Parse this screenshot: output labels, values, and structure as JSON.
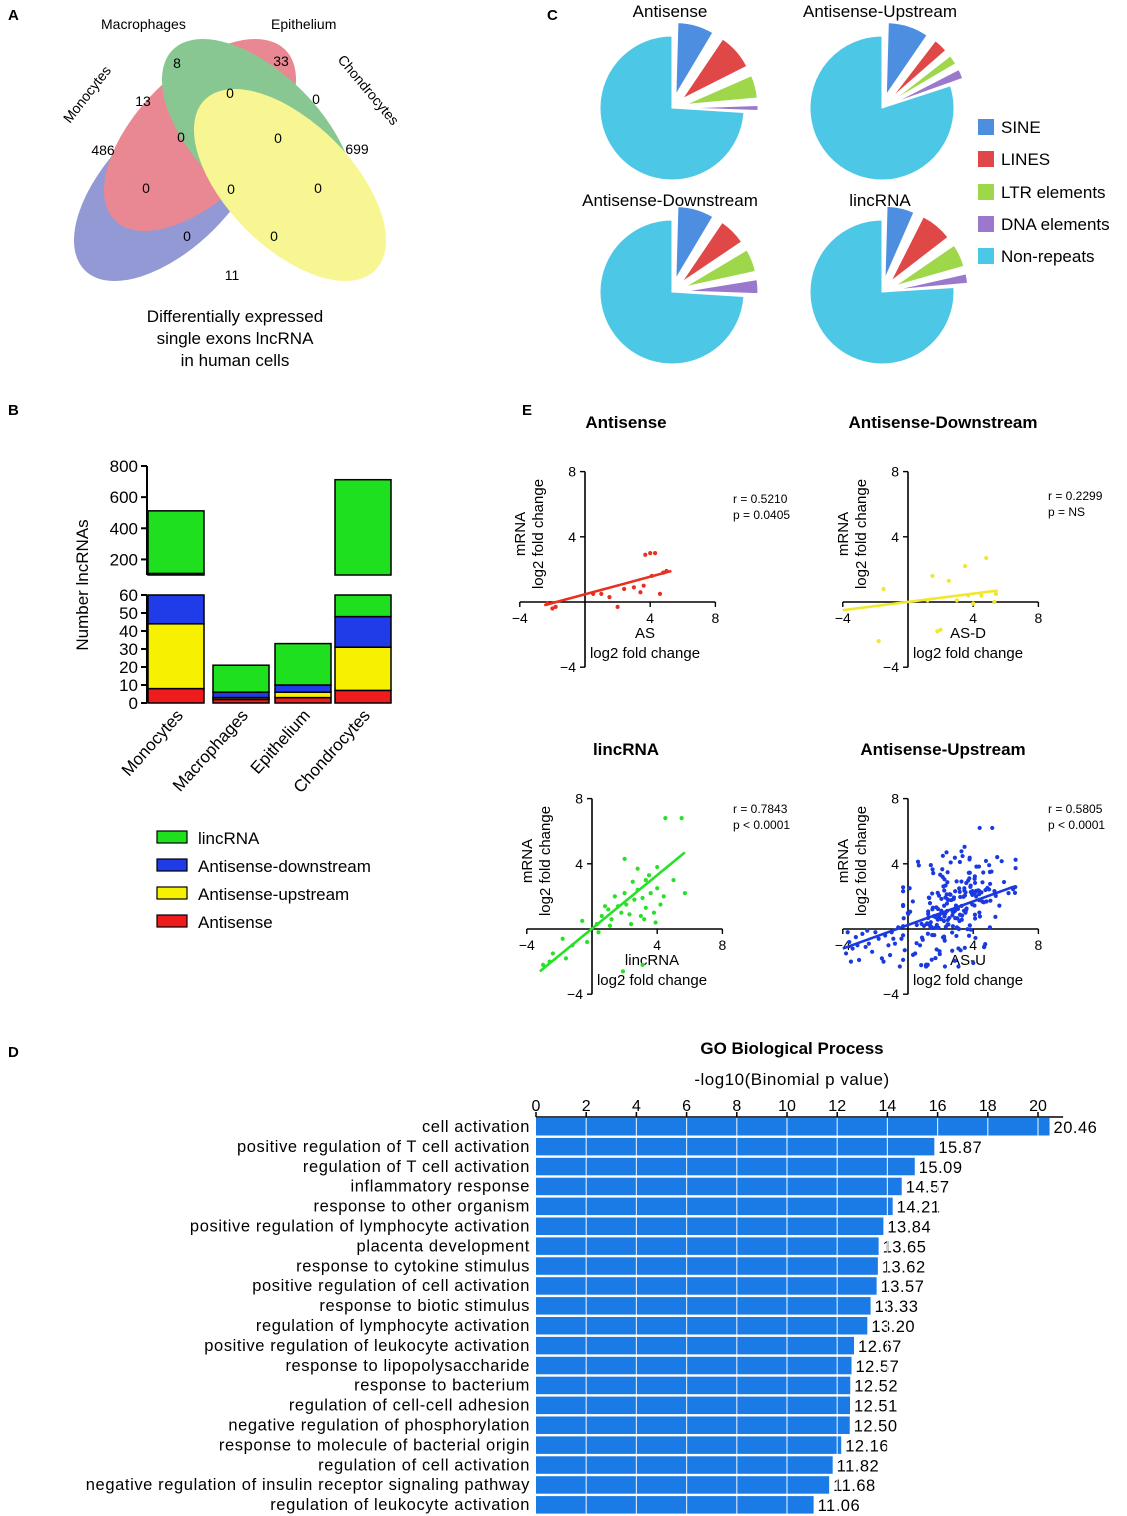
{
  "panels": {
    "A": "A",
    "B": "B",
    "C": "C",
    "D": "D",
    "E": "E"
  },
  "venn": {
    "sets": [
      "Monocytes",
      "Macrophages",
      "Epithelium",
      "Chondrocytes"
    ],
    "set_colors": [
      "#3a46b4",
      "#d8283a",
      "#2a9a3a",
      "#f2f03c"
    ],
    "regions": {
      "mono_only": "486",
      "macro_only": "8",
      "epi_only": "33",
      "chondro_only": "699",
      "mono_macro": "13",
      "macro_epi": "0",
      "epi_chondro": "0",
      "mono_epi": "0",
      "macro_chondro": "0",
      "mono_chondro": "11",
      "mono_macro_epi": "0",
      "macro_epi_chondro": "0",
      "all_four": "0",
      "mono_epi_chondro": "0",
      "mono_macro_chondro": "0"
    },
    "caption": [
      "Differentially expressed",
      "single exons lncRNA",
      "in human cells"
    ]
  },
  "chart_data": [
    {
      "id": "B",
      "type": "bar",
      "stacked": true,
      "ylabel": "Number lncRNAs",
      "categories": [
        "Monocytes",
        "Macrophages",
        "Epithelium",
        "Chondrocytes"
      ],
      "series": [
        {
          "name": "Antisense",
          "color": "#ee1c1c",
          "values": [
            8,
            2,
            3,
            7
          ]
        },
        {
          "name": "Antisense-upstream",
          "color": "#f7f000",
          "values": [
            36,
            1,
            3,
            24
          ]
        },
        {
          "name": "Antisense-downstream",
          "color": "#1f3ce8",
          "values": [
            66,
            3,
            4,
            17
          ]
        },
        {
          "name": "lincRNA",
          "color": "#1ee01e",
          "values": [
            402,
            15,
            23,
            664
          ]
        }
      ],
      "totals": [
        512,
        21,
        33,
        712
      ],
      "ylim_lower": [
        0,
        60
      ],
      "ylim_upper": [
        100,
        800
      ],
      "yticks_lower": [
        "0",
        "10",
        "20",
        "30",
        "40",
        "50",
        "60"
      ],
      "yticks_upper": [
        "200",
        "400",
        "600",
        "800"
      ],
      "legend": [
        "lincRNA",
        "Antisense-downstream",
        "Antisense-upstream",
        "Antisense"
      ]
    },
    {
      "id": "C",
      "type": "pie",
      "labels": [
        "SINE",
        "LINES",
        "LTR elements",
        "DNA elements",
        "Non-repeats"
      ],
      "colors": [
        "#4d8ee0",
        "#e04848",
        "#9ed84a",
        "#9a78cc",
        "#4cc8e6"
      ],
      "pies": [
        {
          "title": "Antisense",
          "values": [
            9,
            9,
            6,
            2,
            74
          ]
        },
        {
          "title": "Antisense-Upstream",
          "values": [
            10,
            4,
            3,
            3,
            80
          ]
        },
        {
          "title": "Antisense-Downstream",
          "values": [
            9,
            7,
            6,
            4,
            74
          ]
        },
        {
          "title": "lincRNA",
          "values": [
            7,
            8,
            6,
            3,
            76
          ]
        }
      ]
    },
    {
      "id": "E",
      "type": "scatter",
      "ylabel": [
        "mRNA",
        "log2 fold change"
      ],
      "xlim": [
        -4,
        8
      ],
      "ylim": [
        -4,
        8
      ],
      "ticks": [
        "-4",
        "4",
        "8"
      ],
      "plots": [
        {
          "title": "Antisense",
          "xlabel": "AS",
          "xlabel2": "log2 fold change",
          "color": "#e83020",
          "r": "r = 0.5210",
          "p": "p = 0.0405",
          "fit": [
            [
              -2.5,
              -0.2
            ],
            [
              5.3,
              1.9
            ]
          ],
          "points": [
            [
              -2.3,
              -0.1
            ],
            [
              -2.0,
              -0.4
            ],
            [
              -1.8,
              -0.3
            ],
            [
              0.5,
              0.5
            ],
            [
              1.0,
              0.5
            ],
            [
              1.5,
              0.3
            ],
            [
              2.0,
              -0.3
            ],
            [
              2.4,
              0.8
            ],
            [
              3.0,
              0.9
            ],
            [
              3.4,
              0.6
            ],
            [
              3.6,
              1.0
            ],
            [
              3.7,
              2.9
            ],
            [
              4.0,
              3.0
            ],
            [
              4.1,
              1.6
            ],
            [
              4.3,
              3.0
            ],
            [
              4.6,
              0.5
            ],
            [
              4.8,
              1.8
            ],
            [
              5.0,
              1.9
            ]
          ]
        },
        {
          "title": "Antisense-Downstream",
          "xlabel": "AS-D",
          "xlabel2": "log2 fold change",
          "color": "#f0e830",
          "r": "r = 0.2299",
          "p": "p = NS",
          "fit": [
            [
              -4.0,
              -0.5
            ],
            [
              5.5,
              0.7
            ]
          ],
          "points": [
            [
              -1.5,
              0.8
            ],
            [
              -1.8,
              -2.4
            ],
            [
              1.2,
              0.1
            ],
            [
              1.5,
              1.6
            ],
            [
              1.8,
              -1.8
            ],
            [
              2.0,
              -1.7
            ],
            [
              2.5,
              1.3
            ],
            [
              3.0,
              0.1
            ],
            [
              3.5,
              2.2
            ],
            [
              3.7,
              0.4
            ],
            [
              4.0,
              -0.1
            ],
            [
              4.5,
              0.4
            ],
            [
              4.8,
              2.7
            ],
            [
              5.4,
              0.5
            ],
            [
              5.3,
              0.0
            ]
          ]
        },
        {
          "title": "lincRNA",
          "xlabel": "lincRNA",
          "xlabel2": "log2 fold change",
          "color": "#28e028",
          "r": "r = 0.7843",
          "p": "p < 0.0001",
          "fit": [
            [
              -3.2,
              -2.6
            ],
            [
              5.7,
              4.7
            ]
          ],
          "points": [
            [
              -3.0,
              -2.2
            ],
            [
              -2.6,
              -2.0
            ],
            [
              -2.4,
              -1.5
            ],
            [
              -1.8,
              -0.6
            ],
            [
              -1.6,
              -1.8
            ],
            [
              -1.2,
              -1.0
            ],
            [
              -0.6,
              0.5
            ],
            [
              -0.3,
              -0.8
            ],
            [
              0.3,
              0.3
            ],
            [
              0.6,
              0.8
            ],
            [
              0.8,
              1.4
            ],
            [
              1.0,
              1.2
            ],
            [
              1.2,
              0.6
            ],
            [
              1.4,
              2.0
            ],
            [
              1.6,
              1.4
            ],
            [
              1.8,
              1.0
            ],
            [
              2.0,
              2.2
            ],
            [
              2.1,
              1.5
            ],
            [
              2.3,
              0.9
            ],
            [
              2.5,
              2.9
            ],
            [
              2.6,
              1.8
            ],
            [
              2.8,
              2.4
            ],
            [
              3.0,
              0.8
            ],
            [
              3.1,
              1.9
            ],
            [
              3.2,
              0.6
            ],
            [
              3.3,
              1.3
            ],
            [
              3.5,
              3.3
            ],
            [
              3.6,
              2.2
            ],
            [
              3.8,
              1.0
            ],
            [
              4.0,
              2.5
            ],
            [
              4.2,
              1.5
            ],
            [
              4.4,
              2.0
            ],
            [
              2.0,
              4.3
            ],
            [
              2.8,
              3.7
            ],
            [
              4.0,
              3.8
            ],
            [
              4.5,
              6.8
            ],
            [
              5.0,
              3.0
            ],
            [
              5.5,
              6.8
            ],
            [
              5.7,
              2.2
            ],
            [
              3.1,
              -2.2
            ],
            [
              1.9,
              -2.6
            ],
            [
              0.4,
              -0.2
            ],
            [
              1.1,
              0.2
            ],
            [
              2.4,
              0.3
            ],
            [
              3.3,
              3.0
            ],
            [
              3.9,
              0.4
            ]
          ]
        },
        {
          "title": "Antisense-Upstream",
          "xlabel": "AS-U",
          "xlabel2": "log2 fold change",
          "color": "#1a3ae0",
          "r": "r = 0.5805",
          "p": "p < 0.0001",
          "fit": [
            [
              -4.0,
              -1.2
            ],
            [
              6.5,
              2.6
            ]
          ],
          "points": [
            [
              -3.8,
              -1.5
            ],
            [
              -3.6,
              -0.8
            ],
            [
              -3.4,
              -1.2
            ],
            [
              -3.2,
              -0.5
            ],
            [
              -3.0,
              -1.9
            ],
            [
              -2.8,
              -0.3
            ],
            [
              -2.6,
              -1.1
            ],
            [
              -2.4,
              -0.9
            ],
            [
              -2.2,
              -1.4
            ],
            [
              -2.0,
              -0.2
            ],
            [
              -1.8,
              -0.6
            ],
            [
              -1.6,
              -1.8
            ],
            [
              -1.4,
              -0.4
            ],
            [
              -1.2,
              -1.0
            ],
            [
              -1.0,
              -0.2
            ],
            [
              -0.8,
              -0.9
            ],
            [
              -0.6,
              0.1
            ],
            [
              -0.4,
              -0.6
            ],
            [
              -0.2,
              -1.3
            ],
            [
              -3.7,
              -0.2
            ],
            [
              -3.5,
              -2.0
            ],
            [
              -3.1,
              -1.0
            ],
            [
              -2.5,
              -0.1
            ],
            [
              -1.5,
              -2.0
            ],
            [
              -1.1,
              -1.6
            ],
            [
              -0.5,
              -2.3
            ],
            [
              -0.9,
              -0.6
            ]
          ],
          "cloud_center": [
            2.8,
            1.2
          ]
        }
      ]
    },
    {
      "id": "D",
      "type": "bar",
      "orientation": "horizontal",
      "title": "GO Biological Process",
      "xlabel": "-log10(Binomial p value)",
      "xlim": [
        0,
        21
      ],
      "xticks": [
        "0",
        "2",
        "4",
        "6",
        "8",
        "10",
        "12",
        "14",
        "16",
        "18",
        "20"
      ],
      "color": "#1a7ae6",
      "categories": [
        "cell activation",
        "positive regulation of T cell activation",
        "regulation of T cell activation",
        "inflammatory response",
        "response to other organism",
        "positive regulation of lymphocyte activation",
        "placenta development",
        "response to cytokine stimulus",
        "positive regulation of cell activation",
        "response to biotic stimulus",
        "regulation of lymphocyte activation",
        "positive regulation of leukocyte activation",
        "response to lipopolysaccharide",
        "response to bacterium",
        "regulation of cell-cell adhesion",
        "negative regulation of phosphorylation",
        "response to molecule of bacterial origin",
        "regulation of cell activation",
        "negative regulation of insulin receptor signaling pathway",
        "regulation of leukocyte activation"
      ],
      "values": [
        20.46,
        15.87,
        15.09,
        14.57,
        14.21,
        13.84,
        13.65,
        13.62,
        13.57,
        13.33,
        13.2,
        12.67,
        12.57,
        12.52,
        12.51,
        12.5,
        12.16,
        11.82,
        11.68,
        11.06
      ],
      "value_labels": [
        "20.46",
        "15.87",
        "15.09",
        "14.57",
        "14.21",
        "13.84",
        "13.65",
        "13.62",
        "13.57",
        "13.33",
        "13.20",
        "12.67",
        "12.57",
        "12.52",
        "12.51",
        "12.50",
        "12.16",
        "11.82",
        "11.68",
        "11.06"
      ]
    }
  ]
}
